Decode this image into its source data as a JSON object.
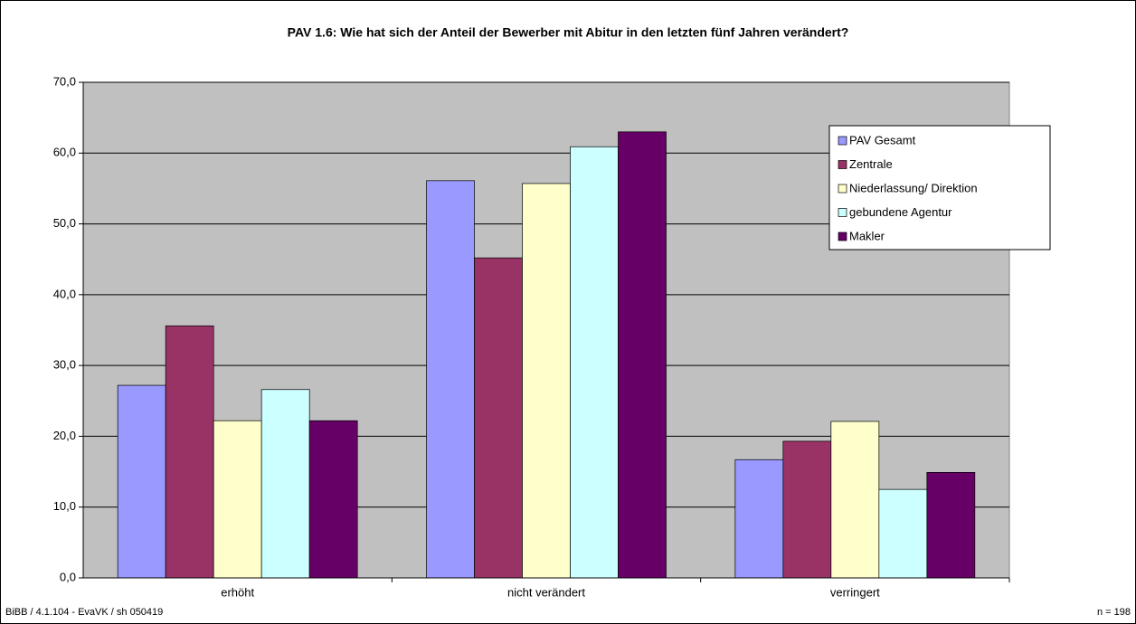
{
  "chart_data": {
    "type": "bar",
    "title": "PAV 1.6: Wie hat sich der Anteil der Bewerber mit Abitur in den letzten fünf Jahren verändert?",
    "categories": [
      "erhöht",
      "nicht verändert",
      "verringert"
    ],
    "series": [
      {
        "name": "PAV Gesamt",
        "color": "#9999ff",
        "values": [
          27.2,
          56.1,
          16.7
        ]
      },
      {
        "name": "Zentrale",
        "color": "#993366",
        "values": [
          35.6,
          45.2,
          19.3
        ]
      },
      {
        "name": "Niederlassung/ Direktion",
        "color": "#ffffcc",
        "values": [
          22.2,
          55.7,
          22.1
        ]
      },
      {
        "name": "gebundene Agentur",
        "color": "#ccffff",
        "values": [
          26.6,
          60.9,
          12.5
        ]
      },
      {
        "name": "Makler",
        "color": "#660066",
        "values": [
          22.2,
          63.0,
          14.9
        ]
      }
    ],
    "ylim": [
      0,
      70
    ],
    "yticks": [
      {
        "value": 0,
        "label": "0,0"
      },
      {
        "value": 10,
        "label": "10,0"
      },
      {
        "value": 20,
        "label": "20,0"
      },
      {
        "value": 30,
        "label": "30,0"
      },
      {
        "value": 40,
        "label": "40,0"
      },
      {
        "value": 50,
        "label": "50,0"
      },
      {
        "value": 60,
        "label": "60,0"
      },
      {
        "value": 70,
        "label": "70,0"
      }
    ],
    "grid": true,
    "legend": "right",
    "footnote_left": "BiBB / 4.1.104 - EvaVK / sh 050419",
    "footnote_right": "n = 198"
  }
}
